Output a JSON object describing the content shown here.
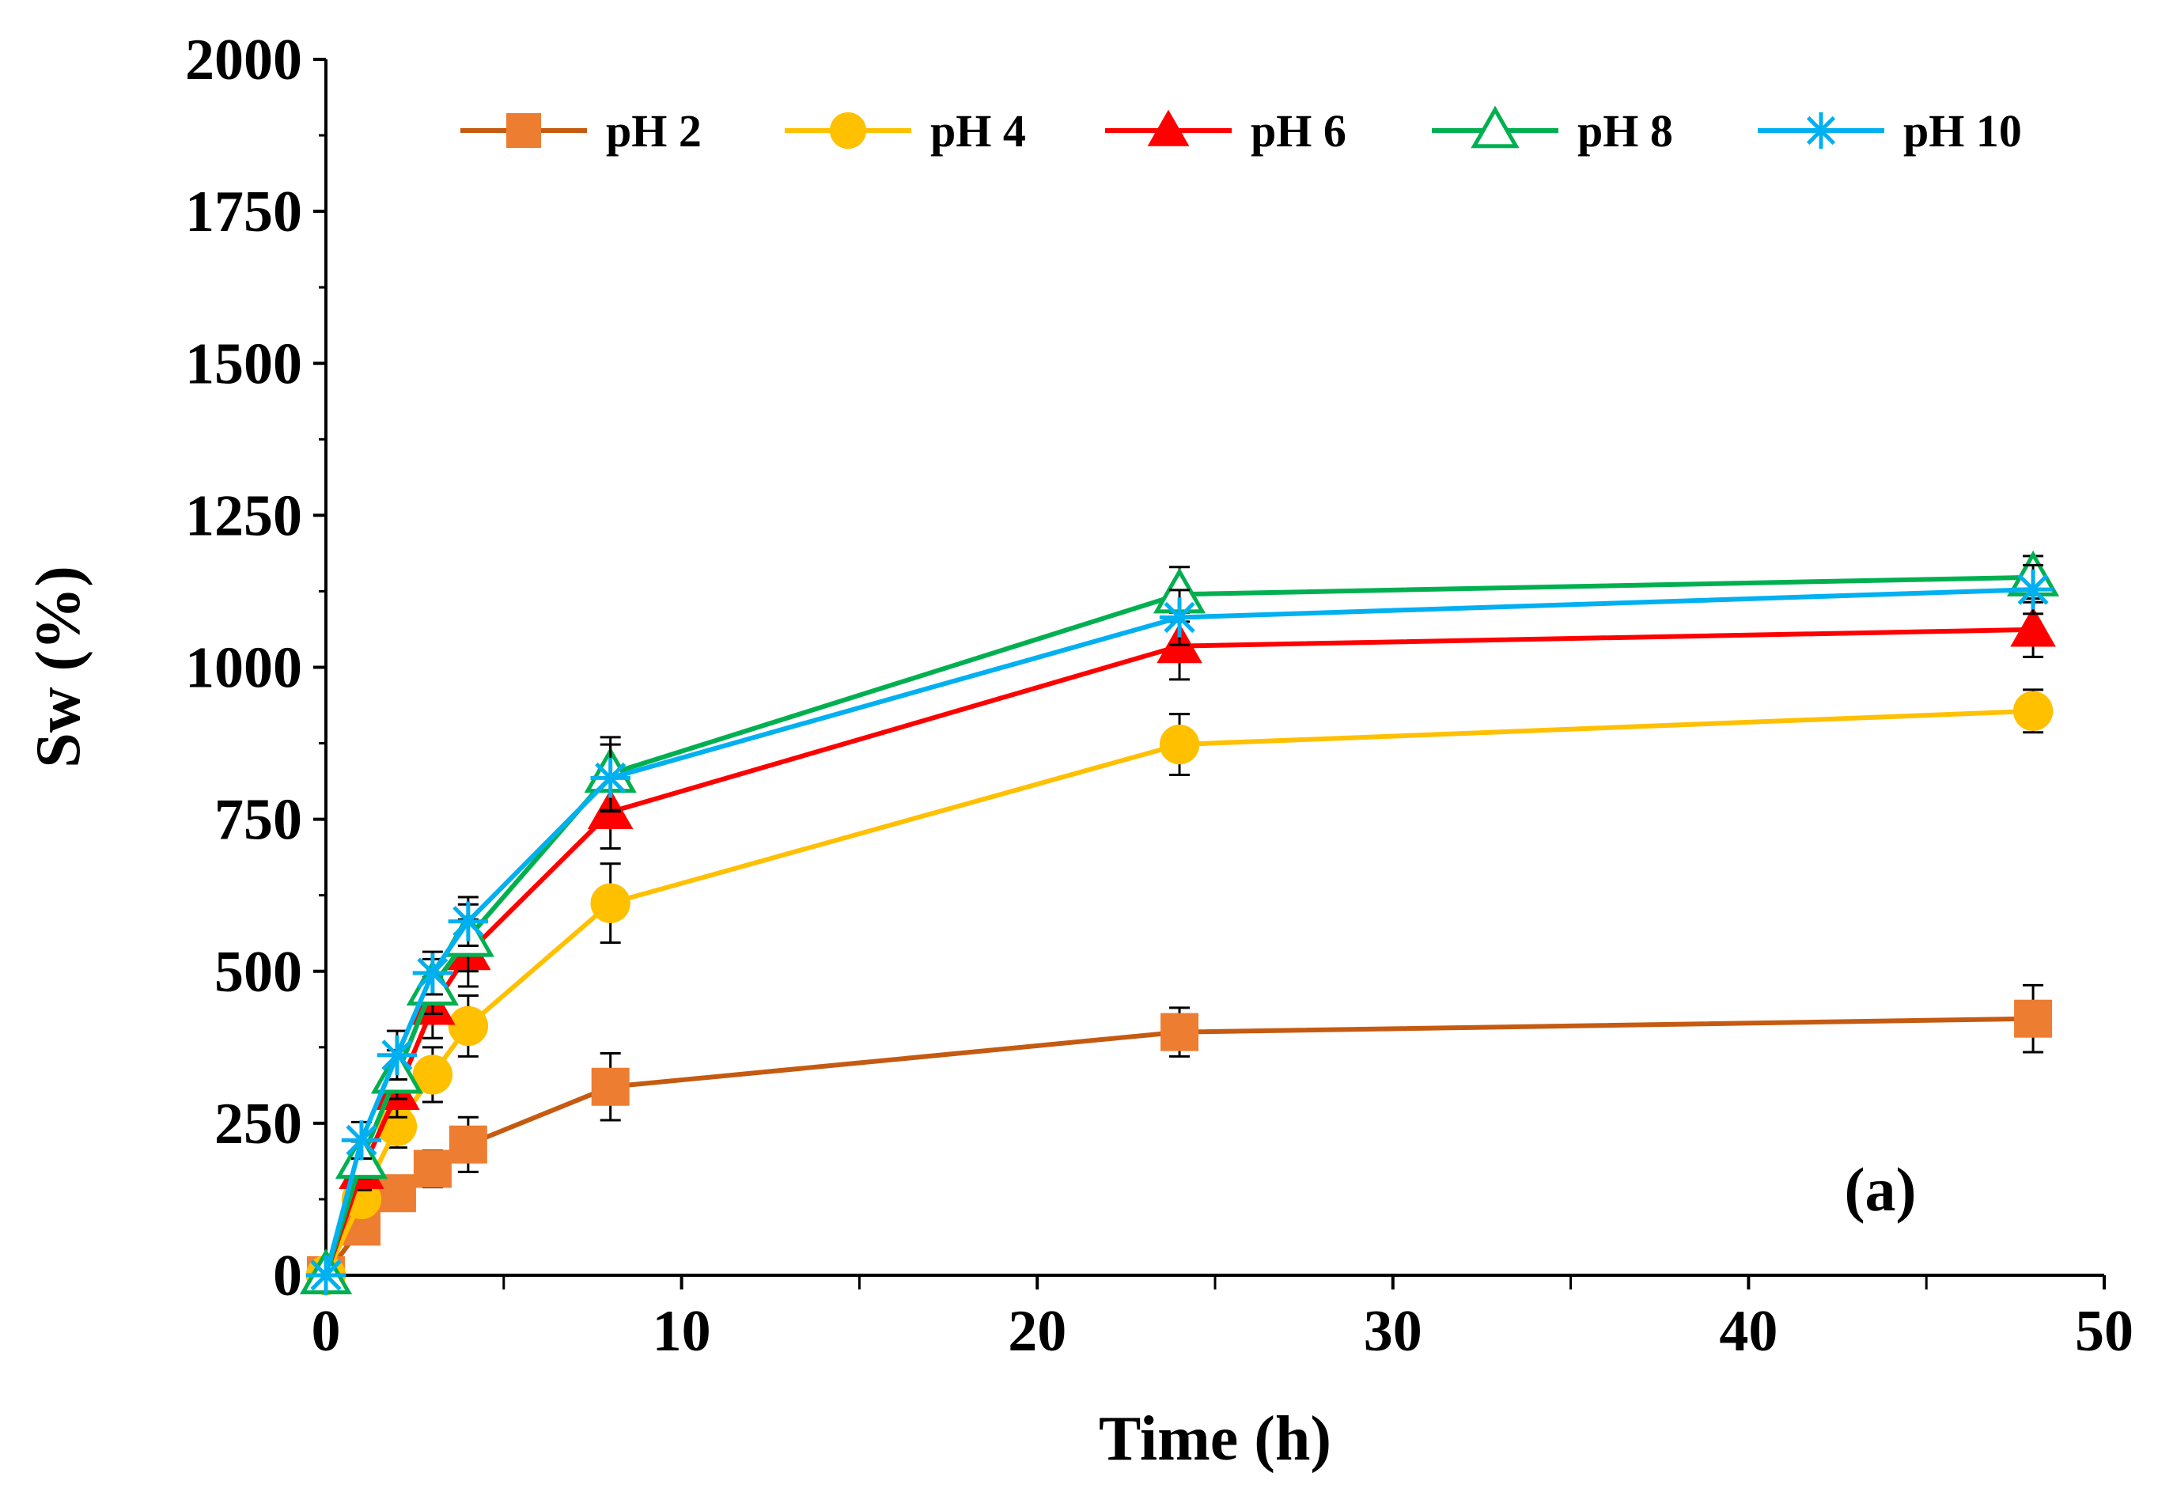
{
  "chart_data": {
    "type": "line",
    "title": "",
    "xlabel": "Time (h)",
    "ylabel": "Sw (%)",
    "xlim": [
      0,
      50
    ],
    "ylim": [
      0,
      2000
    ],
    "xticks": [
      0,
      10,
      20,
      30,
      40,
      50
    ],
    "yticks": [
      0,
      250,
      500,
      750,
      1000,
      1250,
      1500,
      1750,
      2000
    ],
    "xtick_labels": [
      "0",
      "10",
      "20",
      "30",
      "40",
      "50"
    ],
    "ytick_labels": [
      "0",
      "250",
      "500",
      "750",
      "1000",
      "1250",
      "1500",
      "1750",
      "2000"
    ],
    "grid": false,
    "legend_position": "top",
    "annotation": "(a)",
    "x": [
      0,
      1,
      2,
      3,
      4,
      8,
      24,
      48
    ],
    "series": [
      {
        "name": "pH 2",
        "color": "#c55a11",
        "marker_color": "#ed7d31",
        "marker": "square",
        "values": [
          0,
          80,
          135,
          175,
          215,
          310,
          400,
          422
        ],
        "errors": [
          0,
          20,
          25,
          30,
          45,
          55,
          40,
          55
        ]
      },
      {
        "name": "pH 4",
        "color": "#ffc000",
        "marker_color": "#ffc000",
        "marker": "circle",
        "values": [
          0,
          125,
          245,
          330,
          410,
          612,
          873,
          928
        ],
        "errors": [
          0,
          25,
          35,
          45,
          50,
          65,
          50,
          35
        ]
      },
      {
        "name": "pH 6",
        "color": "#ff0000",
        "marker_color": "#ff0000",
        "marker": "triangle",
        "values": [
          0,
          170,
          300,
          440,
          530,
          762,
          1035,
          1062
        ],
        "errors": [
          0,
          30,
          40,
          50,
          55,
          60,
          55,
          45
        ]
      },
      {
        "name": "pH 8",
        "color": "#00b050",
        "marker_color": "#00b050",
        "marker": "triangle-open",
        "values": [
          0,
          190,
          330,
          475,
          555,
          825,
          1120,
          1148
        ],
        "errors": [
          0,
          30,
          40,
          45,
          55,
          60,
          45,
          35
        ]
      },
      {
        "name": "pH 10",
        "color": "#00b0f0",
        "marker_color": "#00b0f0",
        "marker": "asterisk",
        "values": [
          0,
          222,
          362,
          497,
          582,
          818,
          1082,
          1128
        ],
        "errors": [
          0,
          30,
          40,
          35,
          40,
          55,
          45,
          40
        ]
      }
    ]
  }
}
